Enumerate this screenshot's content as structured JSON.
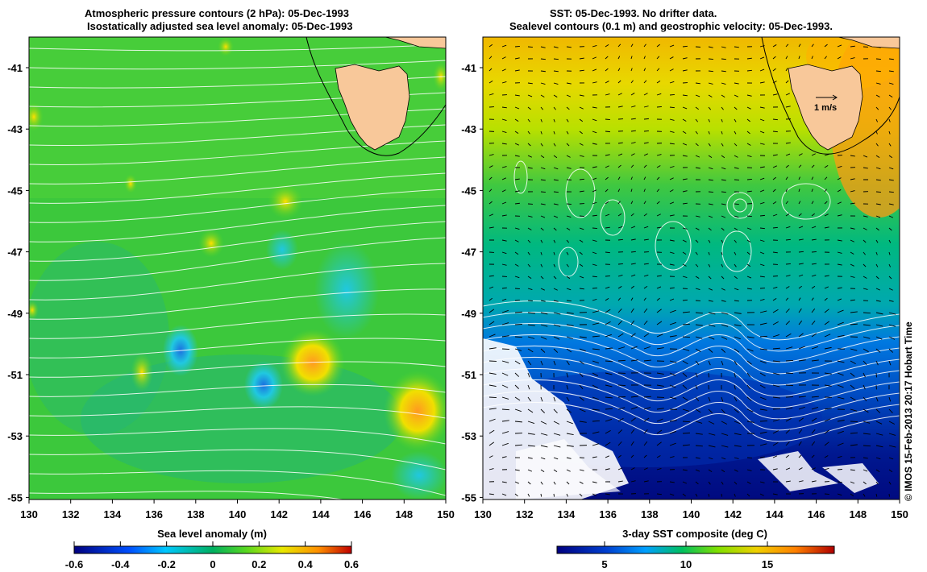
{
  "left_panel": {
    "title_line1": "Atmospheric pressure contours (2 hPa): 05-Dec-1993",
    "title_line2": "Isostatically adjusted sea level anomaly: 05-Dec-1993",
    "colorbar_label": "Sea level anomaly (m)",
    "colorbar_ticks": [
      "-0.6",
      "-0.4",
      "-0.2",
      "0",
      "0.2",
      "0.4",
      "0.6"
    ]
  },
  "right_panel": {
    "title_line1": "SST: 05-Dec-1993. No drifter data.",
    "title_line2": "Sealevel contours (0.1 m) and geostrophic velocity: 05-Dec-1993.",
    "colorbar_label": "3-day SST composite (deg C)",
    "colorbar_ticks": [
      "5",
      "10",
      "15"
    ],
    "velocity_scale_label": "1 m/s"
  },
  "axes": {
    "lat_ticks": [
      "-41",
      "-43",
      "-45",
      "-47",
      "-49",
      "-51",
      "-53",
      "-55"
    ],
    "lon_ticks": [
      "130",
      "132",
      "134",
      "136",
      "138",
      "140",
      "142",
      "144",
      "146",
      "148",
      "150"
    ]
  },
  "credit": "© IMOS 15-Feb-2013 20:17 Hobart Time",
  "colors": {
    "land": "#f8c89a",
    "contour": "#ffffff",
    "sla_scale": [
      "#00007f",
      "#0050ff",
      "#00c8ff",
      "#00b060",
      "#58d820",
      "#e8e800",
      "#ff9000",
      "#c00000"
    ],
    "sst_scale": [
      "#000080",
      "#0040d0",
      "#00a0ff",
      "#00c060",
      "#80e000",
      "#f0d000",
      "#ff8000",
      "#b00000"
    ]
  }
}
